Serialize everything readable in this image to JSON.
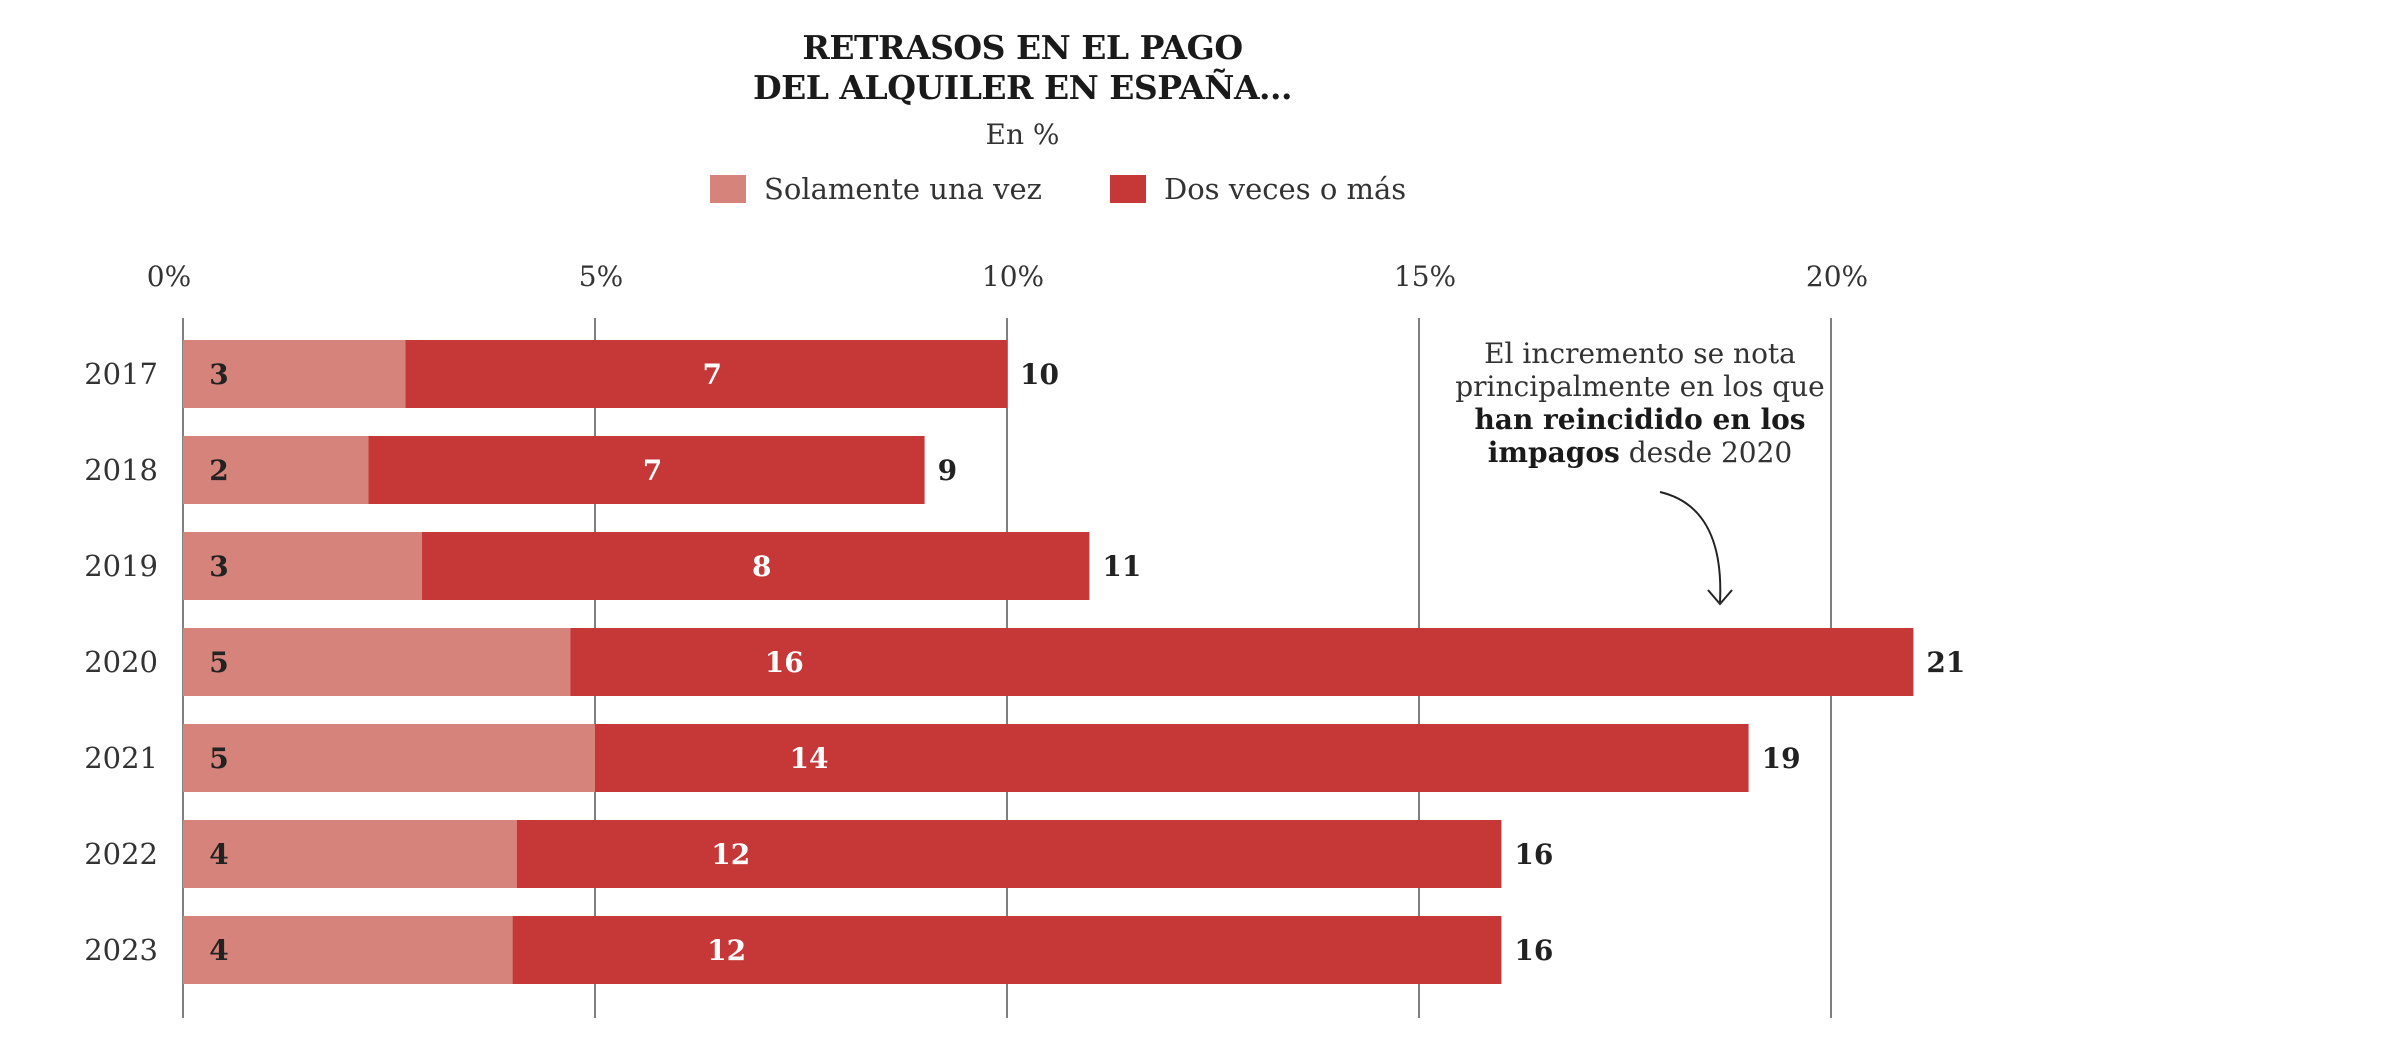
{
  "chart_data": {
    "type": "bar",
    "orientation": "horizontal",
    "stacked": true,
    "title_line1": "RETRASOS EN EL PAGO",
    "title_line2": "DEL ALQUILER EN ESPAÑA...",
    "subtitle": "En %",
    "categories": [
      "2017",
      "2018",
      "2019",
      "2020",
      "2021",
      "2022",
      "2023"
    ],
    "series": [
      {
        "name": "Solamente una vez",
        "color": "#d6837c",
        "values": [
          2.7,
          2.25,
          2.9,
          4.7,
          5.0,
          4.05,
          4.0
        ],
        "labels": [
          "3",
          "2",
          "3",
          "5",
          "5",
          "4",
          "4"
        ]
      },
      {
        "name": "Dos veces o más",
        "color": "#c63838",
        "values": [
          7.3,
          6.75,
          8.1,
          16.3,
          14.0,
          11.95,
          12.0
        ],
        "labels": [
          "7",
          "7",
          "8",
          "16",
          "14",
          "12",
          "12"
        ]
      }
    ],
    "totals": [
      "10",
      "9",
      "11",
      "21",
      "19",
      "16",
      "16"
    ],
    "x_ticks": [
      0,
      5,
      10,
      15,
      20
    ],
    "x_tick_labels": [
      "0%",
      "5%",
      "10%",
      "15%",
      "20%"
    ],
    "xlim": [
      0,
      20
    ],
    "grid": true,
    "annotation": {
      "line1": "El incremento se nota",
      "line2": "principalmente en los que",
      "bold1": "han reincidido en los",
      "bold2": "impagos",
      "rest": " desde 2020"
    }
  }
}
